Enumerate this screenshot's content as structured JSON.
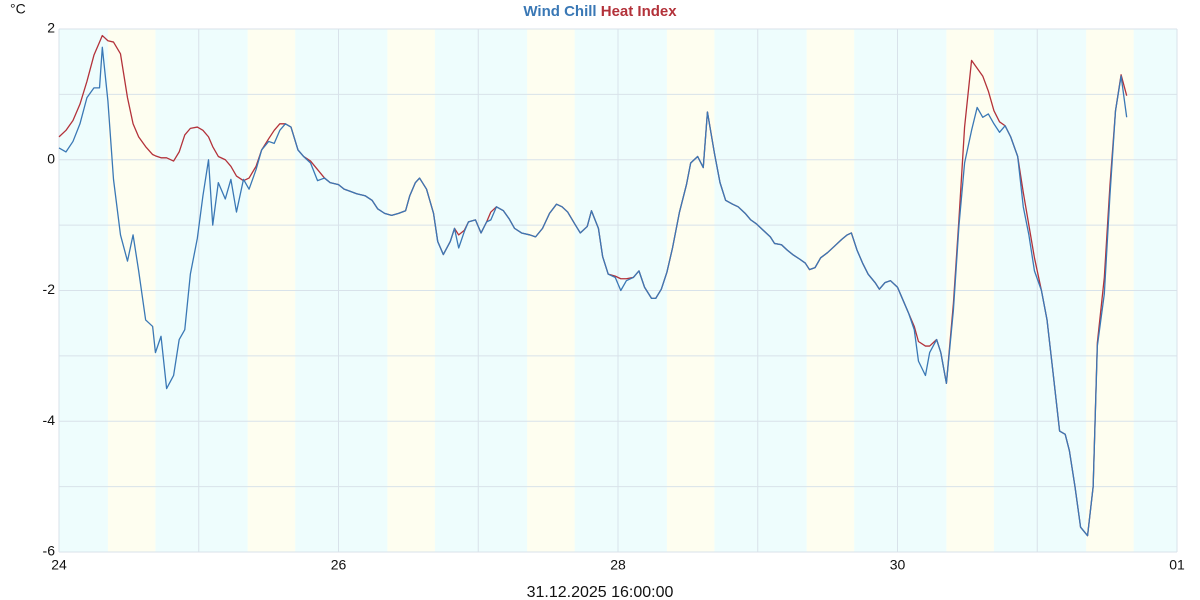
{
  "chart_data": {
    "type": "line",
    "title_separator": " ",
    "y_unit": "°C",
    "xlabel": "31.12.2025 16:00:00",
    "xlim": [
      0,
      8
    ],
    "ylim": [
      -6,
      2
    ],
    "xticks": [
      {
        "value": 0,
        "label": "24"
      },
      {
        "value": 2,
        "label": "26"
      },
      {
        "value": 4,
        "label": "28"
      },
      {
        "value": 6,
        "label": "30"
      },
      {
        "value": 8,
        "label": "01"
      }
    ],
    "xgrid": [
      0,
      1,
      2,
      3,
      4,
      5,
      6,
      7,
      8
    ],
    "yticks": [
      -6,
      -4,
      -2,
      0,
      2
    ],
    "ygrid": [
      -6,
      -5,
      -4,
      -3,
      -2,
      -1,
      0,
      1,
      2
    ],
    "grid": true,
    "background_color": "#eefdfd",
    "daylight_color": "#fefef0",
    "daylight": [
      [
        0.35,
        0.69
      ],
      [
        1.35,
        1.69
      ],
      [
        2.35,
        2.69
      ],
      [
        3.35,
        3.69
      ],
      [
        4.35,
        4.69
      ],
      [
        5.35,
        5.69
      ],
      [
        6.35,
        6.69
      ],
      [
        7.35,
        7.69
      ]
    ],
    "x": [
      0.0,
      0.05,
      0.1,
      0.15,
      0.2,
      0.25,
      0.29,
      0.31,
      0.35,
      0.39,
      0.44,
      0.49,
      0.53,
      0.57,
      0.62,
      0.67,
      0.69,
      0.73,
      0.77,
      0.82,
      0.86,
      0.9,
      0.94,
      0.99,
      1.03,
      1.07,
      1.1,
      1.14,
      1.19,
      1.23,
      1.27,
      1.32,
      1.36,
      1.41,
      1.45,
      1.5,
      1.54,
      1.58,
      1.62,
      1.66,
      1.71,
      1.75,
      1.8,
      1.85,
      1.9,
      1.94,
      2.0,
      2.04,
      2.08,
      2.13,
      2.19,
      2.24,
      2.28,
      2.33,
      2.38,
      2.43,
      2.48,
      2.51,
      2.55,
      2.58,
      2.63,
      2.68,
      2.71,
      2.75,
      2.8,
      2.83,
      2.86,
      2.9,
      2.93,
      2.98,
      3.02,
      3.06,
      3.09,
      3.13,
      3.18,
      3.22,
      3.26,
      3.31,
      3.37,
      3.41,
      3.46,
      3.51,
      3.56,
      3.6,
      3.64,
      3.69,
      3.73,
      3.78,
      3.81,
      3.86,
      3.89,
      3.93,
      3.98,
      4.02,
      4.06,
      4.11,
      4.15,
      4.19,
      4.24,
      4.27,
      4.31,
      4.35,
      4.39,
      4.44,
      4.49,
      4.52,
      4.57,
      4.61,
      4.64,
      4.69,
      4.73,
      4.77,
      4.82,
      4.86,
      4.91,
      4.95,
      4.99,
      5.04,
      5.09,
      5.12,
      5.17,
      5.21,
      5.25,
      5.3,
      5.34,
      5.37,
      5.41,
      5.45,
      5.5,
      5.55,
      5.6,
      5.64,
      5.67,
      5.71,
      5.75,
      5.79,
      5.84,
      5.87,
      5.91,
      5.95,
      6.0,
      6.04,
      6.08,
      6.12,
      6.15,
      6.2,
      6.23,
      6.28,
      6.31,
      6.35,
      6.4,
      6.44,
      6.48,
      6.53,
      6.57,
      6.61,
      6.65,
      6.69,
      6.73,
      6.77,
      6.81,
      6.86,
      6.9,
      6.94,
      6.98,
      7.03,
      7.07,
      7.11,
      7.16,
      7.2,
      7.23,
      7.27,
      7.31,
      7.36,
      7.4,
      7.43,
      7.48,
      7.52,
      7.56,
      7.6,
      7.64
    ],
    "series": [
      {
        "name": "Heat Index",
        "color": "#b3323a",
        "values": [
          0.35,
          0.45,
          0.6,
          0.85,
          1.2,
          1.6,
          1.8,
          1.9,
          1.82,
          1.8,
          1.62,
          0.95,
          0.55,
          0.35,
          0.2,
          0.08,
          0.06,
          0.03,
          0.03,
          -0.02,
          0.12,
          0.38,
          0.48,
          0.5,
          0.45,
          0.35,
          0.2,
          0.05,
          0.0,
          -0.1,
          -0.25,
          -0.32,
          -0.28,
          -0.1,
          0.15,
          0.32,
          0.45,
          0.55,
          0.55,
          0.5,
          0.15,
          0.05,
          -0.02,
          -0.15,
          -0.28,
          -0.35,
          -0.38,
          -0.45,
          -0.48,
          -0.52,
          -0.55,
          -0.62,
          -0.75,
          -0.82,
          -0.85,
          -0.82,
          -0.78,
          -0.55,
          -0.35,
          -0.28,
          -0.45,
          -0.82,
          -1.25,
          -1.45,
          -1.25,
          -1.05,
          -1.15,
          -1.08,
          -0.95,
          -0.92,
          -1.12,
          -0.95,
          -0.8,
          -0.72,
          -0.78,
          -0.9,
          -1.05,
          -1.12,
          -1.15,
          -1.18,
          -1.05,
          -0.82,
          -0.68,
          -0.72,
          -0.8,
          -0.98,
          -1.12,
          -1.02,
          -0.78,
          -1.05,
          -1.48,
          -1.75,
          -1.78,
          -1.82,
          -1.82,
          -1.8,
          -1.7,
          -1.95,
          -2.12,
          -2.12,
          -1.98,
          -1.72,
          -1.35,
          -0.8,
          -0.38,
          -0.05,
          0.05,
          -0.12,
          0.73,
          0.1,
          -0.35,
          -0.62,
          -0.68,
          -0.72,
          -0.82,
          -0.92,
          -0.98,
          -1.08,
          -1.18,
          -1.28,
          -1.3,
          -1.38,
          -1.45,
          -1.52,
          -1.58,
          -1.68,
          -1.65,
          -1.5,
          -1.42,
          -1.32,
          -1.22,
          -1.15,
          -1.12,
          -1.38,
          -1.58,
          -1.75,
          -1.88,
          -1.98,
          -1.88,
          -1.85,
          -1.95,
          -2.15,
          -2.35,
          -2.55,
          -2.78,
          -2.85,
          -2.85,
          -2.75,
          -2.95,
          -3.42,
          -2.2,
          -0.9,
          0.5,
          1.52,
          1.4,
          1.28,
          1.05,
          0.75,
          0.58,
          0.52,
          0.35,
          0.05,
          -0.5,
          -1.0,
          -1.5,
          -2.0,
          -2.45,
          -3.2,
          -4.15,
          -4.2,
          -4.45,
          -5.0,
          -5.62,
          -5.75,
          -5.0,
          -2.8,
          -1.8,
          -0.4,
          0.75,
          1.3,
          0.98
        ]
      },
      {
        "name": "Wind Chill",
        "color": "#3a78b5",
        "values": [
          0.18,
          0.12,
          0.28,
          0.55,
          0.95,
          1.1,
          1.1,
          1.72,
          0.9,
          -0.3,
          -1.15,
          -1.55,
          -1.15,
          -1.7,
          -2.45,
          -2.55,
          -2.95,
          -2.7,
          -3.5,
          -3.3,
          -2.75,
          -2.6,
          -1.75,
          -1.2,
          -0.55,
          0.0,
          -1.0,
          -0.35,
          -0.6,
          -0.3,
          -0.8,
          -0.3,
          -0.45,
          -0.15,
          0.15,
          0.28,
          0.25,
          0.45,
          0.55,
          0.5,
          0.15,
          0.05,
          -0.05,
          -0.32,
          -0.28,
          -0.35,
          -0.38,
          -0.45,
          -0.48,
          -0.52,
          -0.55,
          -0.62,
          -0.75,
          -0.82,
          -0.85,
          -0.82,
          -0.78,
          -0.55,
          -0.35,
          -0.28,
          -0.45,
          -0.82,
          -1.25,
          -1.45,
          -1.25,
          -1.05,
          -1.35,
          -1.1,
          -0.95,
          -0.92,
          -1.12,
          -0.95,
          -0.92,
          -0.72,
          -0.78,
          -0.9,
          -1.05,
          -1.12,
          -1.15,
          -1.18,
          -1.05,
          -0.82,
          -0.68,
          -0.72,
          -0.8,
          -0.98,
          -1.12,
          -1.02,
          -0.78,
          -1.05,
          -1.48,
          -1.75,
          -1.8,
          -2.0,
          -1.85,
          -1.8,
          -1.7,
          -1.95,
          -2.12,
          -2.12,
          -1.98,
          -1.72,
          -1.35,
          -0.8,
          -0.38,
          -0.05,
          0.05,
          -0.12,
          0.73,
          0.1,
          -0.35,
          -0.62,
          -0.68,
          -0.72,
          -0.82,
          -0.92,
          -0.98,
          -1.08,
          -1.18,
          -1.28,
          -1.3,
          -1.38,
          -1.45,
          -1.52,
          -1.58,
          -1.68,
          -1.65,
          -1.5,
          -1.42,
          -1.32,
          -1.22,
          -1.15,
          -1.12,
          -1.38,
          -1.58,
          -1.75,
          -1.88,
          -1.98,
          -1.88,
          -1.85,
          -1.95,
          -2.15,
          -2.35,
          -2.6,
          -3.08,
          -3.3,
          -2.95,
          -2.75,
          -2.95,
          -3.42,
          -2.3,
          -1.0,
          -0.05,
          0.45,
          0.8,
          0.65,
          0.7,
          0.55,
          0.42,
          0.52,
          0.35,
          0.05,
          -0.72,
          -1.15,
          -1.7,
          -2.0,
          -2.45,
          -3.2,
          -4.15,
          -4.2,
          -4.45,
          -5.0,
          -5.62,
          -5.75,
          -5.0,
          -2.85,
          -2.05,
          -0.55,
          0.75,
          1.28,
          0.65
        ]
      }
    ]
  }
}
